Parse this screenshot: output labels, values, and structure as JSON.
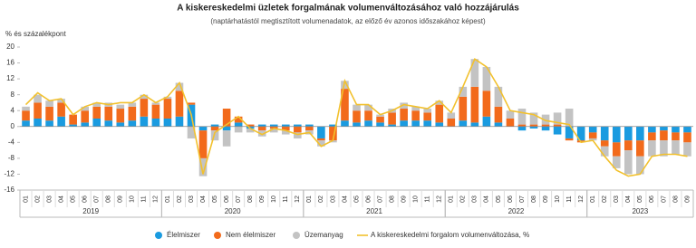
{
  "chart_data": {
    "type": "stacked-bar-line",
    "title": "A kiskereskedelmi üzletek forgalmának volumenváltozásához való hozzájárulás",
    "subtitle": "(naptárhatástól megtisztított volumenadatok, az előző év azonos időszakához képest)",
    "y_label": "% és százalékpont",
    "categories": [
      "01",
      "02",
      "03",
      "04",
      "05",
      "06",
      "07",
      "08",
      "09",
      "10",
      "11",
      "12",
      "01",
      "02",
      "03",
      "04",
      "05",
      "06",
      "07",
      "08",
      "09",
      "10",
      "11",
      "12",
      "01",
      "02",
      "03",
      "04",
      "05",
      "06",
      "07",
      "08",
      "09",
      "10",
      "11",
      "12",
      "01",
      "02",
      "03",
      "04",
      "05",
      "06",
      "07",
      "08",
      "09",
      "10",
      "11",
      "12",
      "01",
      "02",
      "03",
      "04",
      "05",
      "06",
      "07",
      "08",
      "09"
    ],
    "category_groups": [
      "2019",
      "2020",
      "2021",
      "2022",
      "2023"
    ],
    "ylim": [
      -16,
      20
    ],
    "yticks": [
      -16,
      -12,
      -8,
      -4,
      0,
      4,
      8,
      12,
      16,
      20
    ],
    "grid": false,
    "series": [
      {
        "name": "Élelmiszer",
        "color": "#1a9be0",
        "kind": "bar",
        "values": [
          1.5,
          2,
          1.5,
          2.5,
          0.5,
          1,
          2,
          1.5,
          1,
          1.5,
          2.5,
          2,
          2,
          2.5,
          5.5,
          -1,
          0.5,
          -1,
          1,
          -0.5,
          0.5,
          0.5,
          0.5,
          0.5,
          0.5,
          -3,
          0.5,
          1.5,
          1,
          1.5,
          1,
          0.5,
          1.5,
          1.5,
          1.5,
          1,
          0,
          1.5,
          1,
          2.5,
          1,
          0,
          -1,
          -0.5,
          -1,
          -2,
          -3,
          -3.5,
          -1.5,
          -3.5,
          -4,
          -3.5,
          -3.5,
          -1.5,
          -1,
          -1.5,
          -1.5
        ]
      },
      {
        "name": "Nem élelmiszer",
        "color": "#f26a1b",
        "kind": "bar",
        "values": [
          2.5,
          4,
          3.5,
          3.5,
          2.5,
          3,
          3,
          3.5,
          3.5,
          3.5,
          4.5,
          3.5,
          5,
          6.5,
          0.5,
          -7,
          -1,
          4.5,
          1.5,
          0.5,
          -1,
          -0.5,
          -1,
          -1.5,
          -1,
          -0.5,
          -3.5,
          8,
          3,
          2.5,
          1.5,
          3,
          3,
          2.5,
          2,
          4.5,
          2,
          6,
          9,
          6.5,
          4,
          2,
          0.5,
          0.5,
          0.5,
          0.5,
          -0.5,
          -0.5,
          -1.5,
          -1.5,
          -3.5,
          -2.5,
          -4,
          -2,
          -2.5,
          -2,
          -2.5
        ]
      },
      {
        "name": "Üzemanyag",
        "color": "#c3c3c3",
        "kind": "bar",
        "values": [
          1,
          2,
          1.5,
          1,
          0,
          1,
          1,
          1,
          1,
          1,
          1,
          0.5,
          0.5,
          2,
          -3,
          -4.5,
          -2.5,
          -4,
          -1.5,
          -1,
          -1.5,
          -1,
          -1,
          -1.5,
          -1,
          -1.5,
          -0.5,
          2,
          1.5,
          1.5,
          0.5,
          1,
          1.5,
          1,
          1,
          1,
          1.5,
          2.5,
          7,
          6,
          5,
          2,
          4,
          3,
          2.5,
          3,
          4.5,
          0,
          -0.5,
          -2.5,
          -3,
          -6,
          -4.5,
          -4,
          -4,
          -3.5,
          -3.5
        ]
      },
      {
        "name": "A kiskereskedelmi forgalom volumenváltozása, %",
        "color": "#f2c12e",
        "kind": "line",
        "values": [
          5.5,
          8.5,
          6.5,
          7,
          3,
          5,
          6,
          5.5,
          6,
          6,
          8,
          6,
          7.5,
          11,
          3,
          -12,
          -1.5,
          0.5,
          2.5,
          -0.5,
          -2,
          -0.5,
          -1,
          -2,
          -1.5,
          -5,
          -3.5,
          11.5,
          5.5,
          5.5,
          3,
          4,
          5.5,
          5,
          4.5,
          6.5,
          3.5,
          10,
          17,
          15,
          10,
          4,
          3.5,
          3,
          1.5,
          1,
          0.5,
          -4,
          -3.5,
          -7.5,
          -11,
          -12.5,
          -12,
          -7.5,
          -7,
          -7,
          -7.5
        ]
      }
    ]
  }
}
